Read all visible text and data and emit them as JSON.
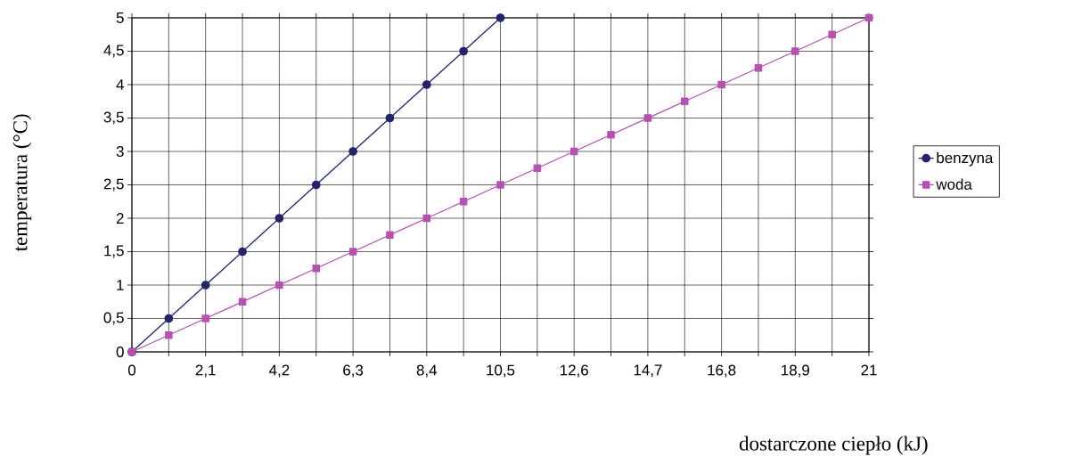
{
  "chart_data": {
    "type": "line",
    "xlabel": "dostarczone ciepło (kJ)",
    "ylabel": "temperatura (°C)",
    "series": [
      {
        "name": "benzyna",
        "color": "#22226e",
        "marker": "circle",
        "x": [
          0,
          1.05,
          2.1,
          3.15,
          4.2,
          5.25,
          6.3,
          7.35,
          8.4,
          9.45,
          10.5
        ],
        "values": [
          0,
          0.5,
          1,
          1.5,
          2,
          2.5,
          3,
          3.5,
          4,
          4.5,
          5
        ]
      },
      {
        "name": "woda",
        "color": "#b94fb3",
        "marker": "square",
        "x": [
          0,
          1.05,
          2.1,
          3.15,
          4.2,
          5.25,
          6.3,
          7.35,
          8.4,
          9.45,
          10.5,
          11.55,
          12.6,
          13.65,
          14.7,
          15.75,
          16.8,
          17.85,
          18.9,
          19.95,
          21
        ],
        "values": [
          0,
          0.25,
          0.5,
          0.75,
          1,
          1.25,
          1.5,
          1.75,
          2,
          2.25,
          2.5,
          2.75,
          3,
          3.25,
          3.5,
          3.75,
          4,
          4.25,
          4.5,
          4.75,
          5
        ]
      }
    ],
    "xlim": [
      0,
      21
    ],
    "xticks": [
      {
        "value": 0,
        "label": "0"
      },
      {
        "value": 1.05,
        "label": null
      },
      {
        "value": 2.1,
        "label": "2,1"
      },
      {
        "value": 3.15,
        "label": null
      },
      {
        "value": 4.2,
        "label": "4,2"
      },
      {
        "value": 5.25,
        "label": null
      },
      {
        "value": 6.3,
        "label": "6,3"
      },
      {
        "value": 7.35,
        "label": null
      },
      {
        "value": 8.4,
        "label": "8,4"
      },
      {
        "value": 9.45,
        "label": null
      },
      {
        "value": 10.5,
        "label": "10,5"
      },
      {
        "value": 11.55,
        "label": null
      },
      {
        "value": 12.6,
        "label": "12,6"
      },
      {
        "value": 13.65,
        "label": null
      },
      {
        "value": 14.7,
        "label": "14,7"
      },
      {
        "value": 15.75,
        "label": null
      },
      {
        "value": 16.8,
        "label": "16,8"
      },
      {
        "value": 17.85,
        "label": null
      },
      {
        "value": 18.9,
        "label": "18,9"
      },
      {
        "value": 19.95,
        "label": null
      },
      {
        "value": 21,
        "label": "21"
      }
    ],
    "ylim": [
      0,
      5
    ],
    "yticks": [
      0,
      {
        "value": 0.5,
        "label": "0,5"
      },
      1,
      {
        "value": 1.5,
        "label": "1,5"
      },
      2,
      {
        "value": 2.5,
        "label": "2,5"
      },
      3,
      {
        "value": 3.5,
        "label": "3,5"
      },
      4,
      {
        "value": 4.5,
        "label": "4,5"
      },
      5
    ],
    "grid": true,
    "legend": "right",
    "line_style": "solid"
  }
}
